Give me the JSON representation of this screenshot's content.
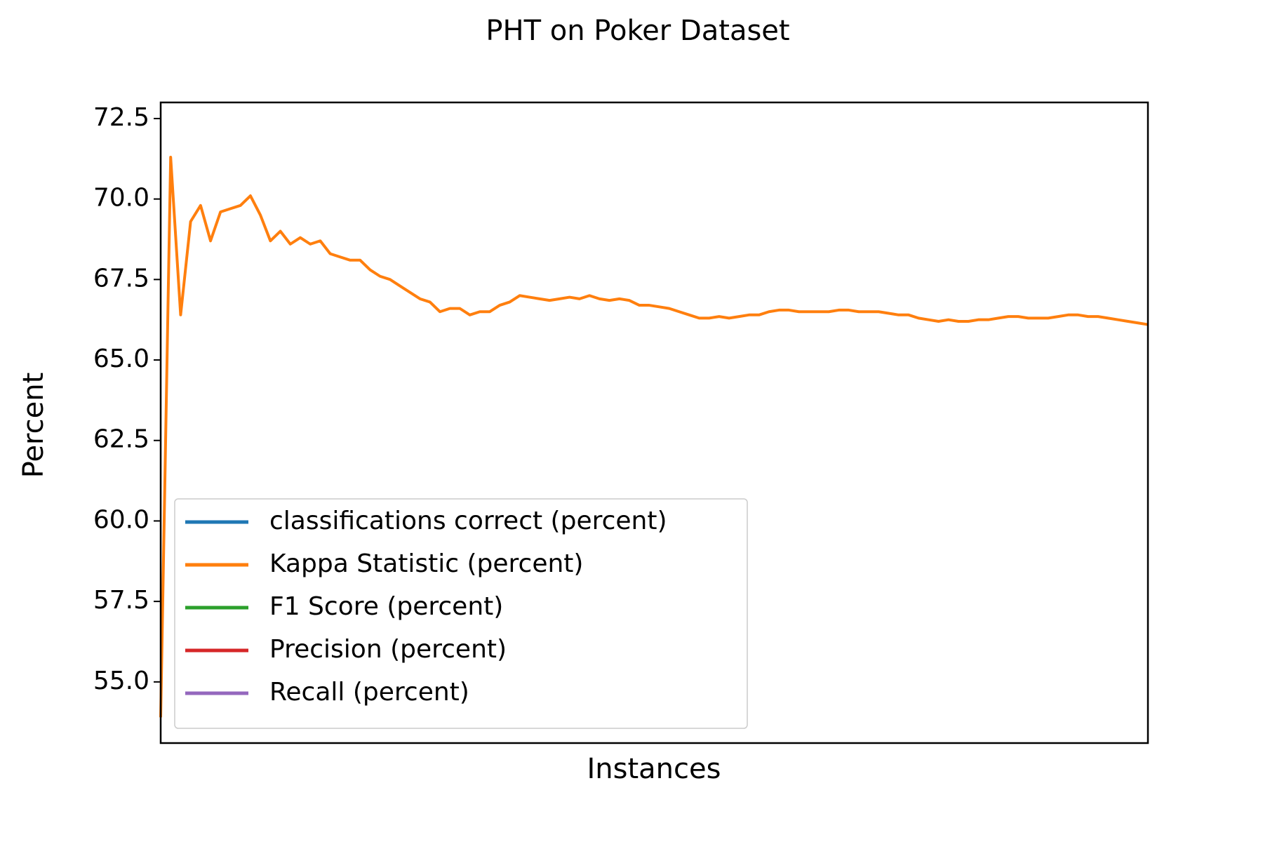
{
  "chart_data": {
    "type": "line",
    "title": "PHT on Poker Dataset",
    "x_label": "Instances",
    "y_label": "Percent",
    "categories": [
      null,
      null,
      null,
      null,
      null,
      null,
      null,
      null,
      null,
      null,
      null,
      null,
      null,
      null,
      null,
      null,
      null,
      null,
      null,
      null,
      null,
      null,
      null,
      null,
      null,
      null,
      null,
      null,
      null,
      null,
      null,
      null,
      null,
      null,
      null,
      null,
      null,
      null,
      null,
      null,
      null,
      null,
      null,
      null,
      null,
      null,
      null,
      null,
      null,
      null,
      null,
      null,
      null,
      null,
      null,
      null,
      null,
      null,
      null,
      null,
      null,
      null,
      null,
      null,
      null,
      null,
      null,
      null,
      null,
      null,
      null,
      null,
      null,
      null,
      null,
      null,
      null,
      null,
      null,
      null,
      null,
      null,
      null,
      null,
      null,
      null,
      null,
      null,
      null,
      null,
      null,
      null,
      null,
      null,
      null,
      null,
      null,
      null,
      null,
      null
    ],
    "series": [
      {
        "name": "classifications correct (percent)",
        "color": "#1f77b4",
        "values": [
          null,
          null,
          null,
          null,
          null,
          null,
          null,
          null,
          null,
          null,
          null,
          null,
          null,
          null,
          null,
          null,
          null,
          null,
          null,
          null,
          null,
          null,
          null,
          null,
          null,
          null,
          null,
          null,
          null,
          null,
          null,
          null,
          null,
          null,
          null,
          null,
          null,
          null,
          null,
          null,
          null,
          null,
          null,
          null,
          null,
          null,
          null,
          null,
          null,
          null,
          null,
          null,
          null,
          null,
          null,
          null,
          null,
          null,
          null,
          null,
          null,
          null,
          null,
          null,
          null,
          null,
          null,
          null,
          null,
          null,
          null,
          null,
          null,
          null,
          null,
          null,
          null,
          null,
          null,
          null,
          null,
          null,
          null,
          null,
          null,
          null,
          null,
          null,
          null,
          null,
          null,
          null,
          null,
          null,
          null,
          null,
          null,
          null,
          null,
          null
        ]
      },
      {
        "name": "Kappa Statistic (percent)",
        "color": "#ff7f0e",
        "values": [
          53.9,
          71.3,
          66.4,
          69.3,
          69.8,
          68.7,
          69.6,
          69.7,
          69.8,
          70.1,
          69.5,
          68.7,
          69.0,
          68.6,
          68.8,
          68.6,
          68.7,
          68.3,
          68.2,
          68.1,
          68.1,
          67.8,
          67.6,
          67.5,
          67.3,
          67.1,
          66.9,
          66.8,
          66.5,
          66.6,
          66.6,
          66.4,
          66.5,
          66.5,
          66.7,
          66.8,
          67.0,
          66.95,
          66.9,
          66.85,
          66.9,
          66.95,
          66.9,
          67.0,
          66.9,
          66.85,
          66.9,
          66.85,
          66.7,
          66.7,
          66.65,
          66.6,
          66.5,
          66.4,
          66.3,
          66.3,
          66.35,
          66.3,
          66.35,
          66.4,
          66.4,
          66.5,
          66.55,
          66.55,
          66.5,
          66.5,
          66.5,
          66.5,
          66.55,
          66.55,
          66.5,
          66.5,
          66.5,
          66.45,
          66.4,
          66.4,
          66.3,
          66.25,
          66.2,
          66.25,
          66.2,
          66.2,
          66.25,
          66.25,
          66.3,
          66.35,
          66.35,
          66.3,
          66.3,
          66.3,
          66.35,
          66.4,
          66.4,
          66.35,
          66.35,
          66.3,
          66.25,
          66.2,
          66.15,
          66.1
        ]
      },
      {
        "name": "F1 Score (percent)",
        "color": "#2ca02c",
        "values": [
          null,
          null,
          null,
          null,
          null,
          null,
          null,
          null,
          null,
          null,
          null,
          null,
          null,
          null,
          null,
          null,
          null,
          null,
          null,
          null,
          null,
          null,
          null,
          null,
          null,
          null,
          null,
          null,
          null,
          null,
          null,
          null,
          null,
          null,
          null,
          null,
          null,
          null,
          null,
          null,
          null,
          null,
          null,
          null,
          null,
          null,
          null,
          null,
          null,
          null,
          null,
          null,
          null,
          null,
          null,
          null,
          null,
          null,
          null,
          null,
          null,
          null,
          null,
          null,
          null,
          null,
          null,
          null,
          null,
          null,
          null,
          null,
          null,
          null,
          null,
          null,
          null,
          null,
          null,
          null,
          null,
          null,
          null,
          null,
          null,
          null,
          null,
          null,
          null,
          null,
          null,
          null,
          null,
          null,
          null,
          null,
          null,
          null,
          null,
          null
        ]
      },
      {
        "name": "Precision (percent)",
        "color": "#d62728",
        "values": [
          null,
          null,
          null,
          null,
          null,
          null,
          null,
          null,
          null,
          null,
          null,
          null,
          null,
          null,
          null,
          null,
          null,
          null,
          null,
          null,
          null,
          null,
          null,
          null,
          null,
          null,
          null,
          null,
          null,
          null,
          null,
          null,
          null,
          null,
          null,
          null,
          null,
          null,
          null,
          null,
          null,
          null,
          null,
          null,
          null,
          null,
          null,
          null,
          null,
          null,
          null,
          null,
          null,
          null,
          null,
          null,
          null,
          null,
          null,
          null,
          null,
          null,
          null,
          null,
          null,
          null,
          null,
          null,
          null,
          null,
          null,
          null,
          null,
          null,
          null,
          null,
          null,
          null,
          null,
          null,
          null,
          null,
          null,
          null,
          null,
          null,
          null,
          null,
          null,
          null,
          null,
          null,
          null,
          null,
          null,
          null,
          null,
          null,
          null,
          null
        ]
      },
      {
        "name": "Recall (percent)",
        "color": "#9467bd",
        "values": [
          null,
          null,
          null,
          null,
          null,
          null,
          null,
          null,
          null,
          null,
          null,
          null,
          null,
          null,
          null,
          null,
          null,
          null,
          null,
          null,
          null,
          null,
          null,
          null,
          null,
          null,
          null,
          null,
          null,
          null,
          null,
          null,
          null,
          null,
          null,
          null,
          null,
          null,
          null,
          null,
          null,
          null,
          null,
          null,
          null,
          null,
          null,
          null,
          null,
          null,
          null,
          null,
          null,
          null,
          null,
          null,
          null,
          null,
          null,
          null,
          null,
          null,
          null,
          null,
          null,
          null,
          null,
          null,
          null,
          null,
          null,
          null,
          null,
          null,
          null,
          null,
          null,
          null,
          null,
          null,
          null,
          null,
          null,
          null,
          null,
          null,
          null,
          null,
          null,
          null,
          null,
          null,
          null,
          null,
          null,
          null,
          null,
          null,
          null,
          null
        ]
      }
    ],
    "ylim": [
      53.1,
      73.0
    ],
    "yticks": [
      {
        "value": 55,
        "label": "55.0"
      },
      57.5,
      {
        "value": 60,
        "label": "60.0"
      },
      62.5,
      {
        "value": 65,
        "label": "65.0"
      },
      67.5,
      {
        "value": 70,
        "label": "70.0"
      },
      72.5
    ],
    "grid": false,
    "legend": "lower left"
  }
}
